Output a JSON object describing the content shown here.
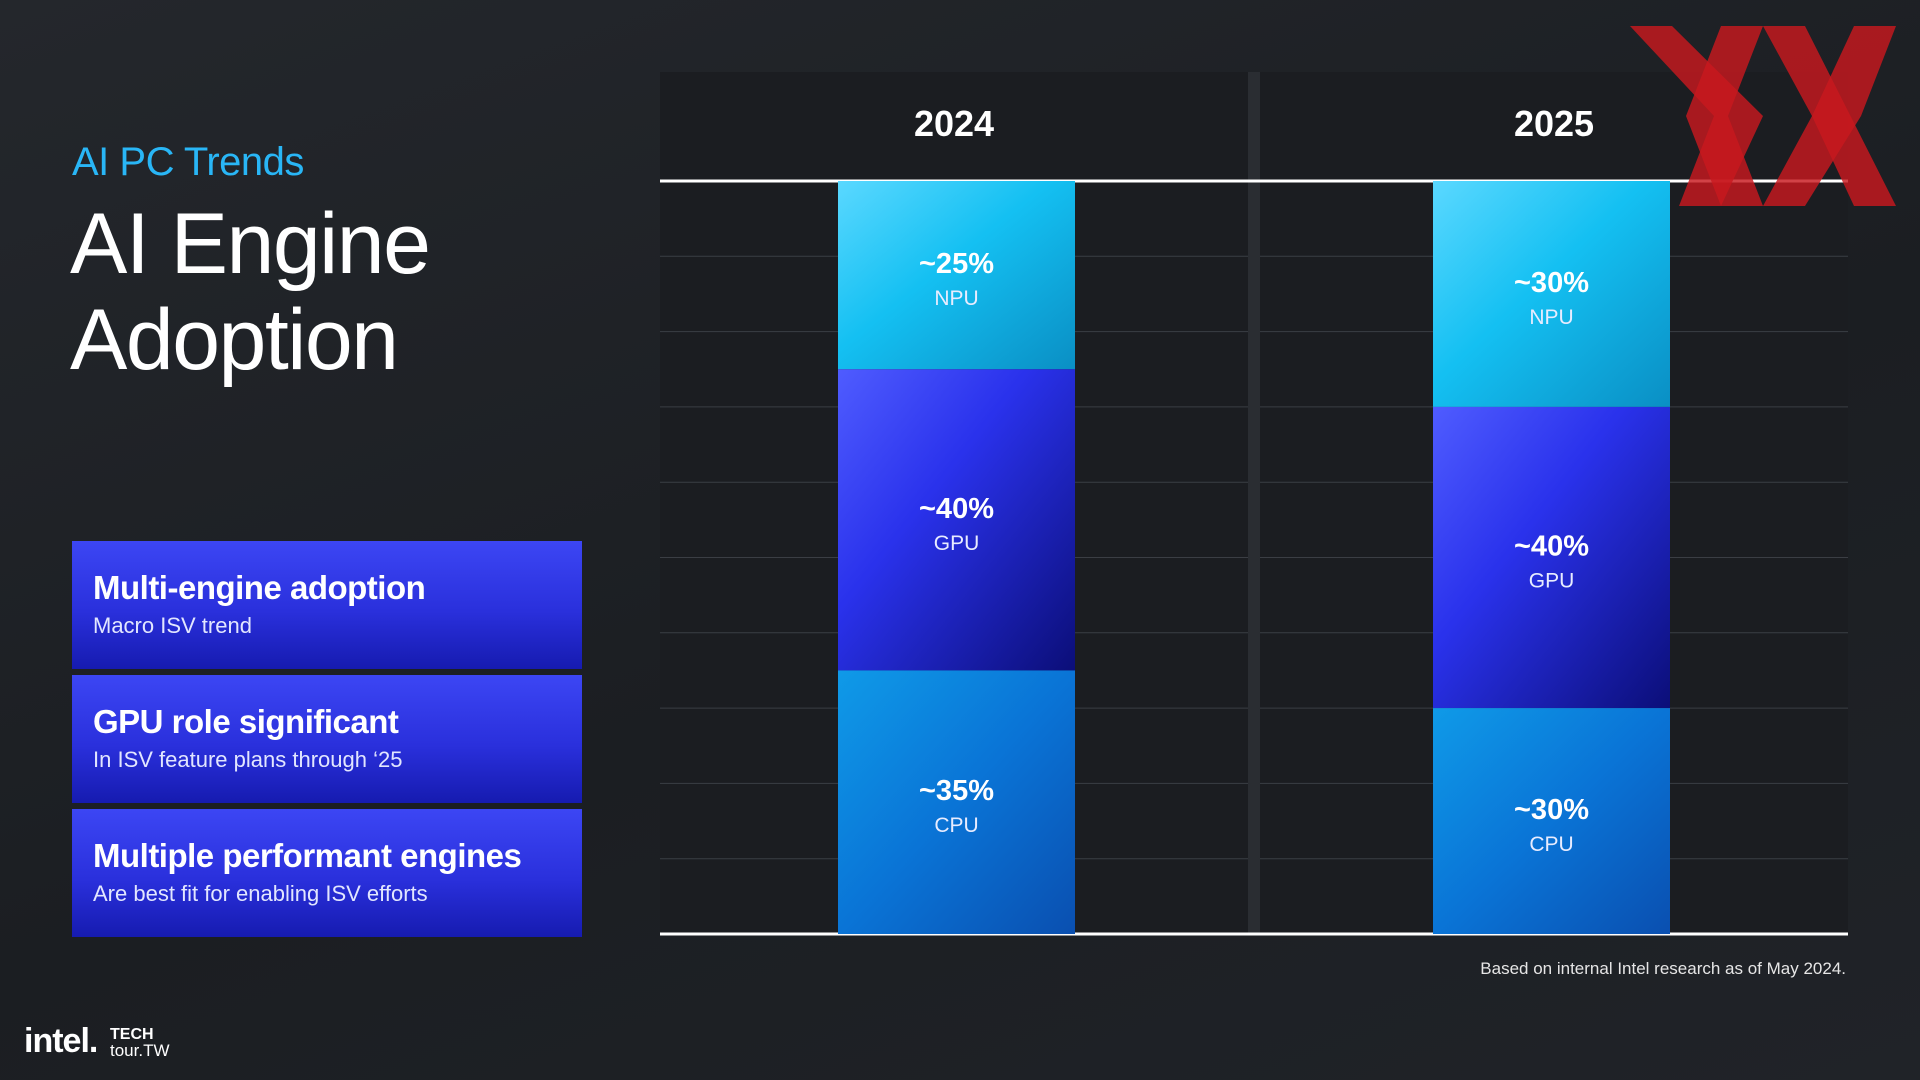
{
  "header": {
    "eyebrow": "AI PC Trends",
    "title_line1": "AI Engine",
    "title_line2": "Adoption"
  },
  "cards": [
    {
      "title": "Multi-engine adoption",
      "subtitle": "Macro ISV trend"
    },
    {
      "title": "GPU role significant",
      "subtitle": "In ISV feature plans through ‘25"
    },
    {
      "title": "Multiple performant engines",
      "subtitle": "Are best fit for enabling ISV efforts"
    }
  ],
  "footnote": "Based on internal Intel research as of May 2024.",
  "logos": {
    "intel": "intel.",
    "techtour_line1": "TECH",
    "techtour_line2": "tour.TW"
  },
  "colors": {
    "npu": "#19c3ef",
    "gpu": "#2b35e6",
    "cpu": "#0a6fd6",
    "accent": "#29b6f6",
    "watermark": "#c8181e"
  },
  "chart_data": {
    "type": "bar",
    "stacked": true,
    "categories": [
      "2024",
      "2025"
    ],
    "series": [
      {
        "name": "NPU",
        "values": [
          25,
          30
        ],
        "labels": [
          "~25%",
          "~30%"
        ]
      },
      {
        "name": "GPU",
        "values": [
          40,
          40
        ],
        "labels": [
          "~40%",
          "~40%"
        ]
      },
      {
        "name": "CPU",
        "values": [
          35,
          30
        ],
        "labels": [
          "~35%",
          "~30%"
        ]
      }
    ],
    "ylim": [
      0,
      100
    ],
    "grid": true,
    "legend": "none"
  }
}
